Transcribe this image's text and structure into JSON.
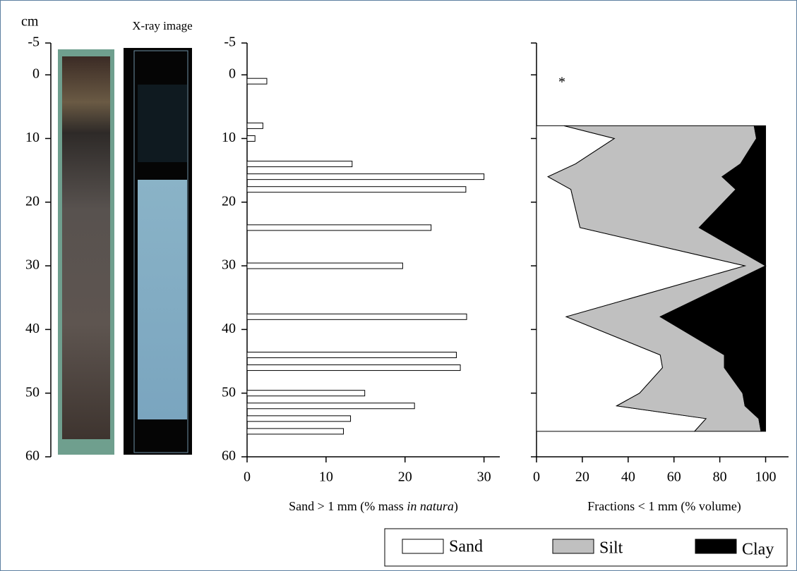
{
  "chart_data": [
    {
      "type": "core-image",
      "ylabel": "cm",
      "annotation": "X-ray image",
      "ylim": [
        60,
        -5
      ],
      "yticks": [
        -5,
        0,
        10,
        20,
        30,
        40,
        50,
        60
      ]
    },
    {
      "type": "bar",
      "orientation": "horizontal",
      "y": [
        1,
        8,
        10,
        14,
        16,
        18,
        24,
        30,
        38,
        44,
        46,
        50,
        52,
        54,
        56
      ],
      "values": [
        2.5,
        2,
        1,
        13.3,
        30,
        27.7,
        23.3,
        19.7,
        27.8,
        26.5,
        27,
        14.9,
        21.2,
        13.1,
        12.2
      ],
      "color": "#ffffff",
      "xlim": [
        0,
        32
      ],
      "xticks": [
        0,
        10,
        20,
        30
      ],
      "ylim": [
        60,
        -5
      ],
      "yticks": [
        -5,
        0,
        10,
        20,
        30,
        40,
        50,
        60
      ],
      "xlabel": [
        "Sand > 1 mm (% mass ",
        "in natura",
        ")"
      ]
    },
    {
      "type": "area",
      "stacked": true,
      "orientation": "horizontal",
      "y": [
        8,
        10,
        14,
        16,
        18,
        24,
        30,
        38,
        44,
        46,
        50,
        52,
        54,
        56
      ],
      "series": [
        {
          "name": "Sand",
          "color": "#ffffff",
          "values": [
            12,
            34,
            17,
            5,
            15,
            19,
            91,
            13,
            54,
            55,
            45,
            35,
            74,
            69
          ]
        },
        {
          "name": "Silt",
          "color": "#c0c0c0",
          "values": [
            83,
            62,
            72,
            76,
            72,
            52,
            9,
            41,
            28,
            27,
            45,
            56,
            23,
            29
          ]
        },
        {
          "name": "Clay",
          "color": "#000000",
          "values": [
            5,
            4,
            11,
            19,
            13,
            29,
            0,
            46,
            18,
            18,
            10,
            9,
            3,
            2
          ]
        }
      ],
      "xlim": [
        0,
        110
      ],
      "xticks": [
        0,
        20,
        40,
        60,
        80,
        100
      ],
      "ylim": [
        60,
        -5
      ],
      "yticks": [
        -5,
        0,
        10,
        20,
        30,
        40,
        50,
        60
      ],
      "ytick_labels": false,
      "xlabel": "Fractions < 1 mm (% volume)",
      "annotation": "*",
      "legend": "bottom-right"
    }
  ]
}
